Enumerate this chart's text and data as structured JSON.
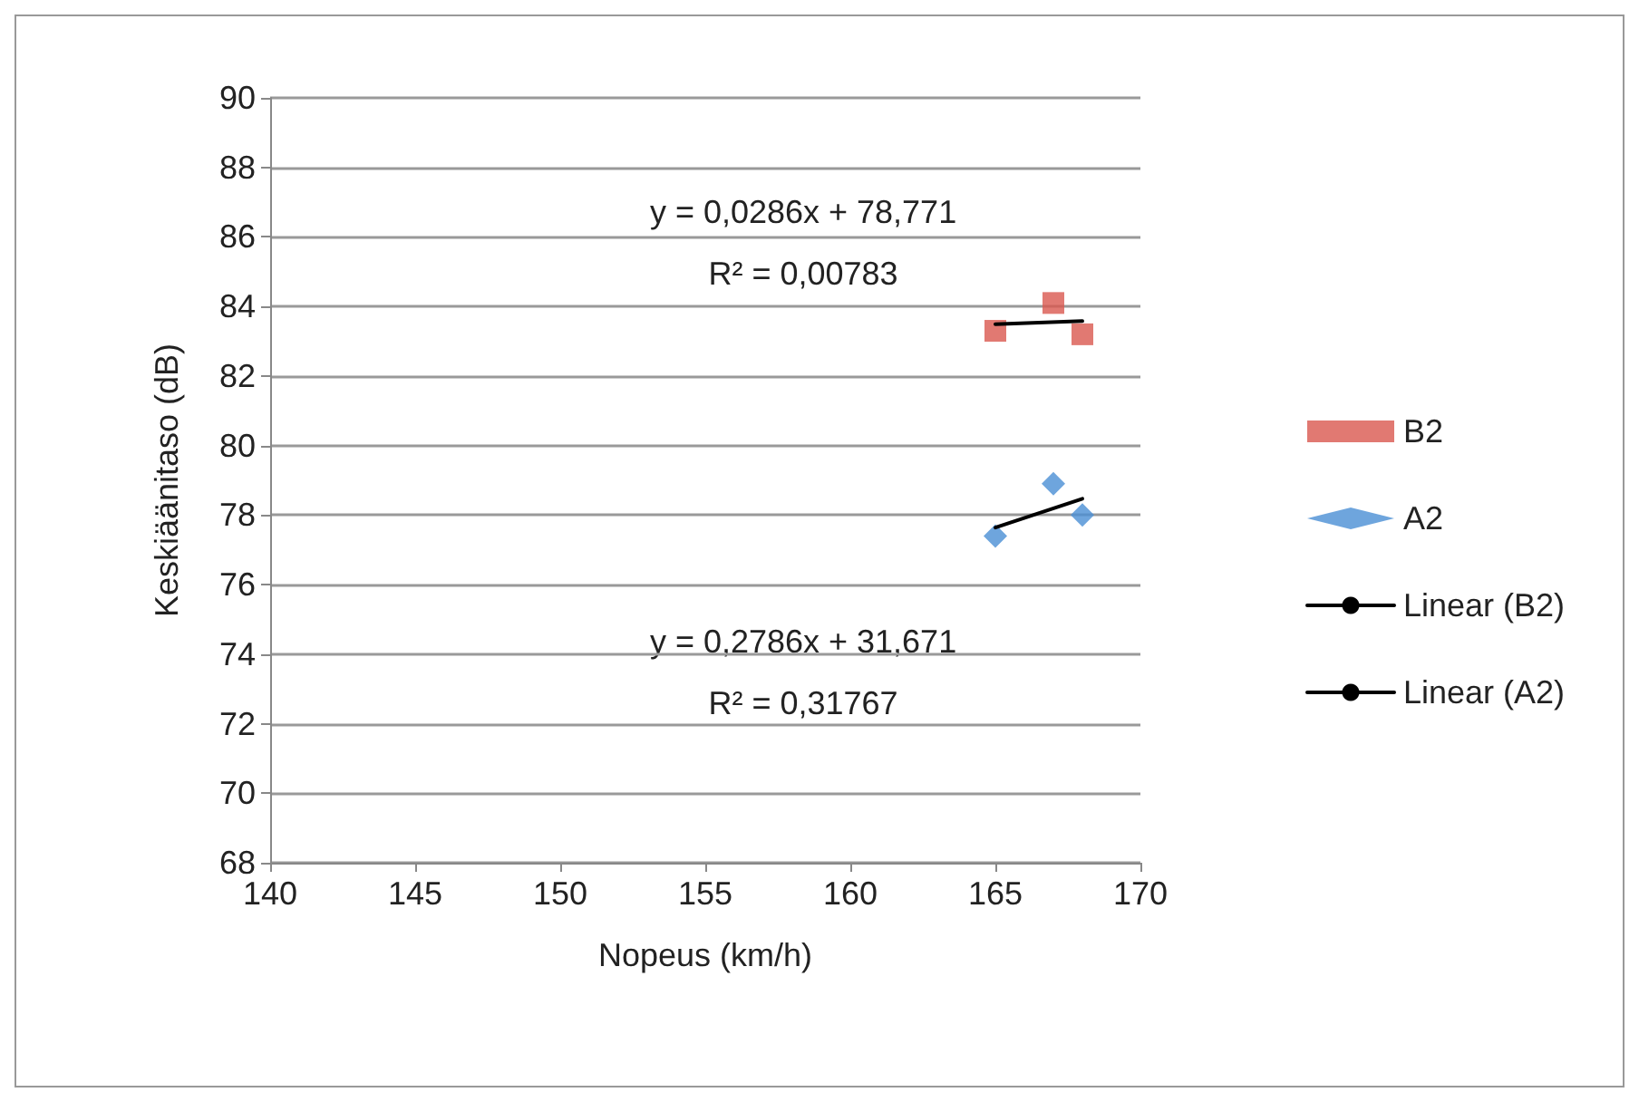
{
  "chart_data": {
    "type": "scatter",
    "xlabel": "Nopeus (km/h)",
    "ylabel": "Keskiäänitaso (dB)",
    "xlim": [
      140,
      170
    ],
    "xticks": [
      140,
      145,
      150,
      155,
      160,
      165,
      170
    ],
    "ylim": [
      68,
      90
    ],
    "yticks": [
      68,
      70,
      72,
      74,
      76,
      78,
      80,
      82,
      84,
      86,
      88,
      90
    ],
    "grid": "y",
    "legend": "right",
    "series": [
      {
        "name": "B2",
        "color": "#d9574f",
        "marker": "square",
        "x": [
          165,
          167,
          168
        ],
        "values": [
          83.3,
          84.1,
          83.2
        ]
      },
      {
        "name": "A2",
        "color": "#4a8fd4",
        "marker": "diamond",
        "x": [
          165,
          167,
          168
        ],
        "values": [
          77.4,
          78.9,
          78.0
        ]
      },
      {
        "name": "Linear (B2)",
        "type": "line",
        "color": "#000000",
        "marker": "none",
        "x": [
          165,
          168
        ],
        "values": [
          83.49,
          83.58
        ]
      },
      {
        "name": "Linear (A2)",
        "type": "line",
        "color": "#000000",
        "marker": "none",
        "x": [
          165,
          168
        ],
        "values": [
          77.64,
          78.47
        ]
      }
    ],
    "annotations": [
      "y = 0,0286x + 78,771",
      "R² = 0,00783",
      "y = 0,2786x + 31,671",
      "R² = 0,31767"
    ]
  }
}
